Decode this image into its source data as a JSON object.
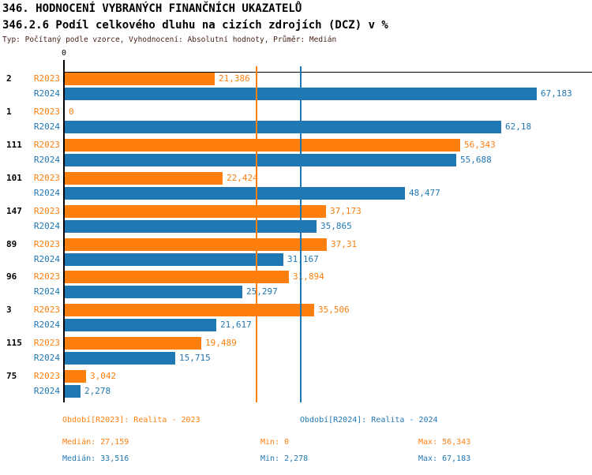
{
  "header": {
    "title": "346. HODNOCENÍ VYBRANÝCH FINANČNÍCH UKAZATELŮ",
    "subtitle": "346.2.6 Podíl celkového dluhu na cizích zdrojích (DCZ) v %",
    "meta": "Typ: Počítaný podle vzorce, Vyhodnocení: Absolutní hodnoty, Průměr: Medián"
  },
  "colors": {
    "r2023": "#ff7f0e",
    "r2024": "#1f77b4",
    "axis": "#000000",
    "meta_text": "#4a241c"
  },
  "chart_data": {
    "type": "bar",
    "orientation": "horizontal",
    "title": "346.2.6 Podíl celkového dluhu na cizích zdrojích (DCZ) v %",
    "axis_zero_label": "0",
    "xlim": [
      0,
      75
    ],
    "grid": false,
    "categories": [
      "2",
      "1",
      "111",
      "101",
      "147",
      "89",
      "96",
      "3",
      "115",
      "75"
    ],
    "series": [
      {
        "name": "R2023",
        "color": "#ff7f0e",
        "values": [
          21.386,
          0,
          56.343,
          22.424,
          37.173,
          37.31,
          31.894,
          35.506,
          19.489,
          3.042
        ],
        "labels": [
          "21,386",
          "0",
          "56,343",
          "22,424",
          "37,173",
          "37,31",
          "31,894",
          "35,506",
          "19,489",
          "3,042"
        ],
        "median": 27.159,
        "median_label": "27,159"
      },
      {
        "name": "R2024",
        "color": "#1f77b4",
        "values": [
          67.183,
          62.18,
          55.688,
          48.477,
          35.865,
          31.167,
          25.297,
          21.617,
          15.715,
          2.278
        ],
        "labels": [
          "67,183",
          "62,18",
          "55,688",
          "48,477",
          "35,865",
          "31,167",
          "25,297",
          "21,617",
          "15,715",
          "2,278"
        ],
        "median": 33.516,
        "median_label": "33,516"
      }
    ]
  },
  "footer": {
    "periods": [
      {
        "label": "Období[R2023]: Realita - 2023",
        "color": "#ff7f0e"
      },
      {
        "label": "Období[R2024]: Realita - 2024",
        "color": "#1f77b4"
      }
    ],
    "stats": [
      {
        "median": "Medián: 27,159",
        "min": "Min: 0",
        "max": "Max: 56,343"
      },
      {
        "median": "Medián: 33,516",
        "min": "Min: 2,278",
        "max": "Max: 67,183"
      }
    ]
  }
}
